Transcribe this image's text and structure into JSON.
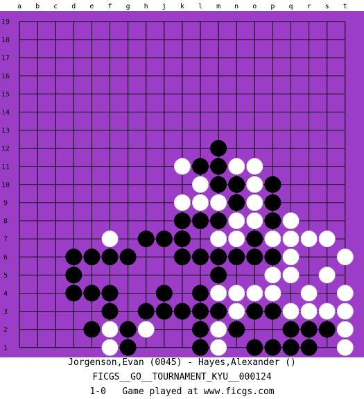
{
  "board": {
    "size": 19,
    "colors": {
      "background": "#9b3dc7",
      "grid": "#000000",
      "black_stone": "#000000",
      "white_stone": "#ffffff"
    },
    "columns": [
      "a",
      "b",
      "c",
      "d",
      "e",
      "f",
      "g",
      "h",
      "j",
      "k",
      "l",
      "m",
      "n",
      "o",
      "p",
      "q",
      "r",
      "s",
      "t"
    ],
    "rows": [
      "19",
      "18",
      "17",
      "16",
      "15",
      "14",
      "13",
      "12",
      "11",
      "10",
      "9",
      "8",
      "7",
      "6",
      "5",
      "4",
      "3",
      "2",
      "1"
    ],
    "black": [
      "m12",
      "l11",
      "m11",
      "m10",
      "n10",
      "p10",
      "n9",
      "p9",
      "k8",
      "l8",
      "m8",
      "p8",
      "h7",
      "j7",
      "k7",
      "o7",
      "d6",
      "e6",
      "f6",
      "g6",
      "k6",
      "l6",
      "m6",
      "n6",
      "o6",
      "p6",
      "d5",
      "m5",
      "d4",
      "e4",
      "f4",
      "j4",
      "l4",
      "f3",
      "h3",
      "j3",
      "k3",
      "l3",
      "m3",
      "o3",
      "p3",
      "e2",
      "g2",
      "l2",
      "n2",
      "q2",
      "r2",
      "s2",
      "g1",
      "l1",
      "o1",
      "p1",
      "q1",
      "r1"
    ],
    "white": [
      "k11",
      "n11",
      "o11",
      "l10",
      "o10",
      "k9",
      "l9",
      "m9",
      "o9",
      "n8",
      "o8",
      "q8",
      "f7",
      "m7",
      "n7",
      "p7",
      "q7",
      "r7",
      "s7",
      "q6",
      "t6",
      "p5",
      "q5",
      "s5",
      "m4",
      "n4",
      "o4",
      "p4",
      "r4",
      "t4",
      "n3",
      "q3",
      "r3",
      "s3",
      "t3",
      "f2",
      "h2",
      "m2",
      "t2",
      "f1",
      "m1",
      "t1"
    ]
  },
  "captions": {
    "players": "Jorgenson,Evan (0045) - Hayes,Alexander ()",
    "event": "FICGS__GO__TOURNAMENT_KYU__000124",
    "result": "1-0   Game played at www.ficgs.com"
  }
}
